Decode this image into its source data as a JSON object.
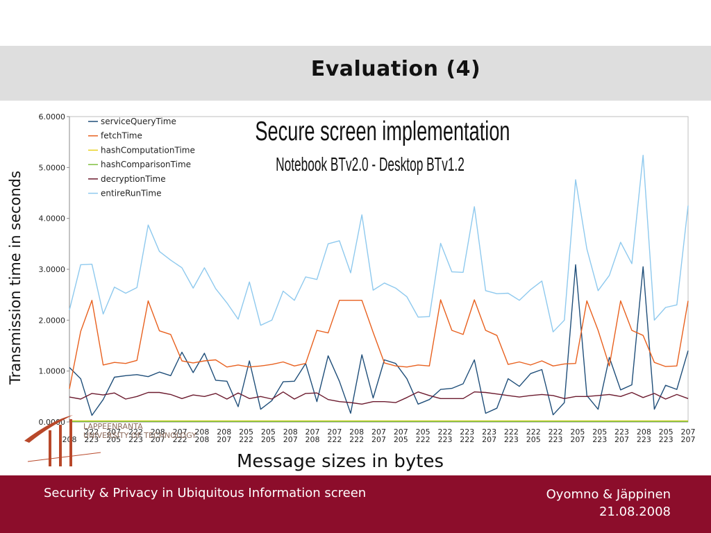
{
  "slide": {
    "title": "Evaluation (4)"
  },
  "footer": {
    "left": "Security & Privacy in Ubiquitous Information screen",
    "authors": "Oyomno & Jäppinen",
    "date": "21.08.2008"
  },
  "logo": {
    "line1": "LAPPEENRANTA",
    "line2": "UNIVERSITY OF TECHNOLOGY"
  },
  "chart_data": {
    "type": "line",
    "title": "Secure screen implementation",
    "subtitle": "Notebook BTv2.0 - Desktop BTv1.2",
    "xlabel": "Message sizes in bytes",
    "ylabel": "Transmission time in seconds",
    "ylim": [
      0,
      6
    ],
    "yticks": [
      "0.0000",
      "1.0000",
      "2.0000",
      "3.0000",
      "4.0000",
      "5.0000",
      "6.0000"
    ],
    "grid": false,
    "legend_position": "top-left",
    "categories": [
      "208",
      "222",
      "223",
      "207",
      "205",
      "222",
      "223",
      "208",
      "207",
      "207",
      "222",
      "208",
      "208",
      "208",
      "207",
      "205",
      "222",
      "205",
      "205",
      "205",
      "207",
      "207",
      "208",
      "207",
      "222",
      "208",
      "222",
      "207",
      "207",
      "207",
      "205",
      "205",
      "222",
      "222",
      "223",
      "223",
      "222",
      "223",
      "207",
      "222",
      "222",
      "222",
      "223",
      "205",
      "222",
      "223",
      "205",
      "207",
      "207",
      "223",
      "208",
      "207",
      "205",
      "223",
      "207",
      "207"
    ],
    "x_label_rows": [
      [
        "",
        "222",
        "207",
        "222",
        "208",
        "207",
        "208",
        "208",
        "205",
        "205",
        "208",
        "207",
        "207",
        "208",
        "207",
        "207",
        "205",
        "222",
        "223",
        "223",
        "222",
        "222",
        "222",
        "205",
        "205",
        "223",
        "208",
        "205",
        "207"
      ],
      [
        "208",
        "223",
        "205",
        "223",
        "207",
        "222",
        "208",
        "207",
        "222",
        "205",
        "207",
        "208",
        "222",
        "222",
        "207",
        "205",
        "222",
        "223",
        "222",
        "207",
        "223",
        "205",
        "223",
        "207",
        "223",
        "207",
        "223",
        "223",
        "207"
      ]
    ],
    "series": [
      {
        "name": "serviceQueryTime",
        "color": "#1f4e79",
        "values": [
          1.07,
          0.85,
          0.13,
          0.44,
          0.88,
          0.91,
          0.93,
          0.89,
          0.98,
          0.91,
          1.37,
          0.97,
          1.35,
          0.82,
          0.8,
          0.3,
          1.2,
          0.25,
          0.42,
          0.79,
          0.8,
          1.15,
          0.4,
          1.3,
          0.8,
          0.17,
          1.32,
          0.47,
          1.22,
          1.15,
          0.85,
          0.35,
          0.44,
          0.64,
          0.66,
          0.75,
          1.22,
          0.17,
          0.27,
          0.85,
          0.7,
          0.95,
          1.03,
          0.14,
          0.38,
          3.09,
          0.52,
          0.25,
          1.27,
          0.63,
          0.73,
          3.05,
          0.25,
          0.72,
          0.64,
          1.4
        ]
      },
      {
        "name": "fetchTime",
        "color": "#e8601e",
        "values": [
          0.65,
          1.78,
          2.39,
          1.12,
          1.17,
          1.15,
          1.21,
          2.38,
          1.79,
          1.72,
          1.2,
          1.16,
          1.2,
          1.22,
          1.08,
          1.12,
          1.08,
          1.1,
          1.13,
          1.18,
          1.1,
          1.15,
          1.8,
          1.75,
          2.39,
          2.39,
          2.39,
          1.76,
          1.16,
          1.1,
          1.08,
          1.12,
          1.1,
          2.4,
          1.8,
          1.72,
          2.4,
          1.8,
          1.7,
          1.13,
          1.18,
          1.12,
          1.2,
          1.1,
          1.14,
          1.15,
          2.38,
          1.8,
          1.1,
          2.38,
          1.8,
          1.7,
          1.17,
          1.09,
          1.1,
          2.38
        ]
      },
      {
        "name": "hashComputationTime",
        "color": "#e8d21e",
        "values": [
          0.02,
          0.02,
          0.02,
          0.02,
          0.02,
          0.02,
          0.02,
          0.02,
          0.02,
          0.02,
          0.02,
          0.02,
          0.02,
          0.02,
          0.02,
          0.02,
          0.02,
          0.02,
          0.02,
          0.02,
          0.02,
          0.02,
          0.02,
          0.02,
          0.02,
          0.02,
          0.02,
          0.02,
          0.02,
          0.02,
          0.02,
          0.02,
          0.02,
          0.02,
          0.02,
          0.02,
          0.02,
          0.02,
          0.02,
          0.02,
          0.02,
          0.02,
          0.02,
          0.02,
          0.02,
          0.02,
          0.02,
          0.02,
          0.02,
          0.02,
          0.02,
          0.02,
          0.02,
          0.02,
          0.02,
          0.02
        ]
      },
      {
        "name": "hashComparisonTime",
        "color": "#7fbf3f",
        "values": [
          0.01,
          0.01,
          0.01,
          0.01,
          0.01,
          0.01,
          0.01,
          0.01,
          0.01,
          0.01,
          0.01,
          0.01,
          0.01,
          0.01,
          0.01,
          0.01,
          0.01,
          0.01,
          0.01,
          0.01,
          0.01,
          0.01,
          0.01,
          0.01,
          0.01,
          0.01,
          0.01,
          0.01,
          0.01,
          0.01,
          0.01,
          0.01,
          0.01,
          0.01,
          0.01,
          0.01,
          0.01,
          0.01,
          0.01,
          0.01,
          0.01,
          0.01,
          0.01,
          0.01,
          0.01,
          0.01,
          0.01,
          0.01,
          0.01,
          0.01,
          0.01,
          0.01,
          0.01,
          0.01,
          0.01,
          0.01
        ]
      },
      {
        "name": "decryptionTime",
        "color": "#6b1a2e",
        "values": [
          0.49,
          0.45,
          0.56,
          0.53,
          0.57,
          0.45,
          0.5,
          0.58,
          0.58,
          0.54,
          0.46,
          0.53,
          0.5,
          0.56,
          0.45,
          0.57,
          0.46,
          0.5,
          0.45,
          0.59,
          0.45,
          0.56,
          0.57,
          0.44,
          0.4,
          0.38,
          0.35,
          0.4,
          0.4,
          0.38,
          0.48,
          0.59,
          0.52,
          0.46,
          0.46,
          0.46,
          0.59,
          0.58,
          0.55,
          0.52,
          0.49,
          0.52,
          0.54,
          0.52,
          0.46,
          0.5,
          0.5,
          0.52,
          0.54,
          0.5,
          0.58,
          0.48,
          0.56,
          0.45,
          0.54,
          0.46
        ]
      },
      {
        "name": "entireRunTime",
        "color": "#8ec9ee",
        "values": [
          2.2,
          3.09,
          3.1,
          2.12,
          2.65,
          2.53,
          2.64,
          3.87,
          3.35,
          3.18,
          3.03,
          2.63,
          3.03,
          2.62,
          2.34,
          2.02,
          2.75,
          1.9,
          2.0,
          2.57,
          2.39,
          2.85,
          2.8,
          3.5,
          3.56,
          2.93,
          4.07,
          2.59,
          2.73,
          2.63,
          2.46,
          2.06,
          2.07,
          3.51,
          2.95,
          2.94,
          4.23,
          2.58,
          2.52,
          2.53,
          2.39,
          2.6,
          2.77,
          1.77,
          2.0,
          4.76,
          3.4,
          2.58,
          2.88,
          3.53,
          3.11,
          5.24,
          2.0,
          2.25,
          2.3,
          4.25
        ]
      }
    ]
  }
}
